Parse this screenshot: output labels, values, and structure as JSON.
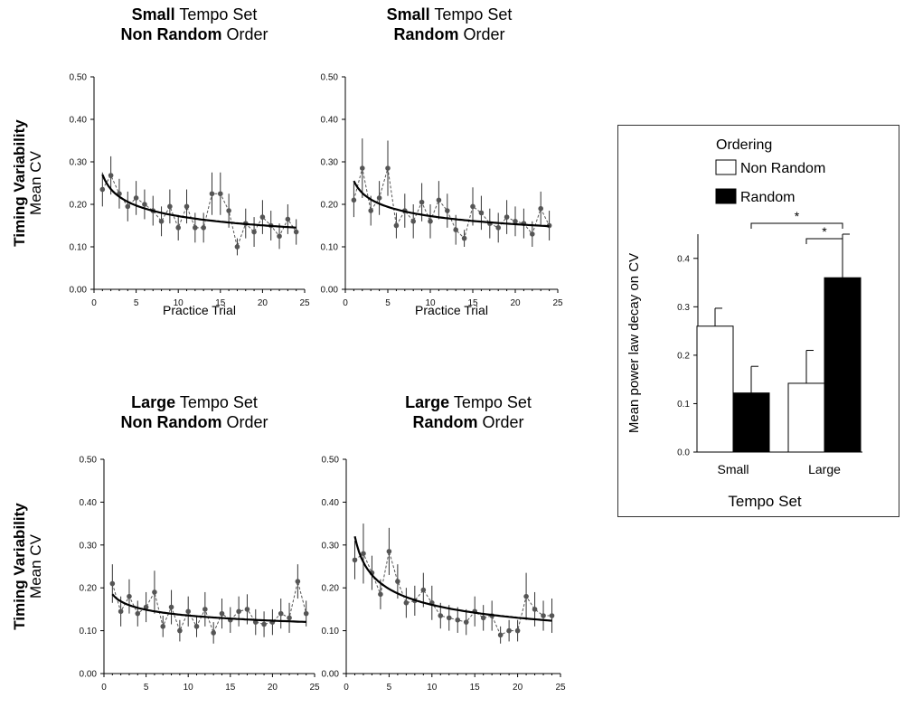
{
  "panels": [
    {
      "title_bold": "Small",
      "title_rest": " Tempo Set",
      "order_bold": "Non Random",
      "order_rest": " Order"
    },
    {
      "title_bold": "Small",
      "title_rest": " Tempo Set",
      "order_bold": "Random",
      "order_rest": " Order"
    },
    {
      "title_bold": "Large",
      "title_rest": " Tempo Set",
      "order_bold": "Non Random",
      "order_rest": " Order"
    },
    {
      "title_bold": "Large",
      "title_rest": " Tempo Set",
      "order_bold": "Random",
      "order_rest": " Order"
    }
  ],
  "y_label_line1": "Timing Variability",
  "y_label_line2": "Mean CV",
  "x_label": "Practice Trial",
  "chart_data": [
    {
      "type": "line",
      "xlabel": "Practice Trial",
      "ylabel": "Timing Variability Mean CV",
      "xlim": [
        0,
        25
      ],
      "ylim": [
        0,
        0.5
      ],
      "xticks": [
        0,
        5,
        10,
        15,
        20,
        25
      ],
      "yticks": [
        "0.00",
        "0.10",
        "0.20",
        "0.30",
        "0.40",
        "0.50"
      ],
      "x": [
        1,
        2,
        3,
        4,
        5,
        6,
        7,
        8,
        9,
        10,
        11,
        12,
        13,
        14,
        15,
        16,
        17,
        18,
        19,
        20,
        21,
        22,
        23,
        24
      ],
      "values": [
        0.235,
        0.268,
        0.225,
        0.195,
        0.215,
        0.2,
        0.185,
        0.16,
        0.195,
        0.145,
        0.195,
        0.145,
        0.145,
        0.225,
        0.225,
        0.185,
        0.1,
        0.155,
        0.135,
        0.17,
        0.15,
        0.125,
        0.165,
        0.135
      ],
      "errors": [
        0.04,
        0.045,
        0.035,
        0.035,
        0.04,
        0.035,
        0.035,
        0.035,
        0.04,
        0.03,
        0.04,
        0.035,
        0.035,
        0.05,
        0.05,
        0.04,
        0.02,
        0.035,
        0.035,
        0.04,
        0.035,
        0.03,
        0.035,
        0.03
      ],
      "fit": {
        "a": 0.27,
        "b": 0.195
      }
    },
    {
      "type": "line",
      "xlabel": "Practice Trial",
      "ylabel": "Timing Variability Mean CV",
      "xlim": [
        0,
        25
      ],
      "ylim": [
        0,
        0.5
      ],
      "xticks": [
        0,
        5,
        10,
        15,
        20,
        25
      ],
      "yticks": [
        "0.00",
        "0.10",
        "0.20",
        "0.30",
        "0.40",
        "0.50"
      ],
      "x": [
        1,
        2,
        3,
        4,
        5,
        6,
        7,
        8,
        9,
        10,
        11,
        12,
        13,
        14,
        15,
        16,
        17,
        18,
        19,
        20,
        21,
        22,
        23,
        24
      ],
      "values": [
        0.21,
        0.285,
        0.185,
        0.215,
        0.285,
        0.15,
        0.185,
        0.16,
        0.205,
        0.16,
        0.21,
        0.185,
        0.14,
        0.12,
        0.195,
        0.18,
        0.155,
        0.145,
        0.17,
        0.16,
        0.155,
        0.13,
        0.19,
        0.15
      ],
      "errors": [
        0.04,
        0.07,
        0.035,
        0.04,
        0.065,
        0.03,
        0.04,
        0.04,
        0.045,
        0.04,
        0.045,
        0.04,
        0.035,
        0.02,
        0.045,
        0.04,
        0.035,
        0.035,
        0.04,
        0.035,
        0.035,
        0.03,
        0.04,
        0.035
      ],
      "fit": {
        "a": 0.255,
        "b": 0.17
      }
    },
    {
      "type": "line",
      "xlabel": "Practice Trial",
      "ylabel": "Timing Variability Mean CV",
      "xlim": [
        0,
        25
      ],
      "ylim": [
        0,
        0.5
      ],
      "xticks": [
        0,
        5,
        10,
        15,
        20,
        25
      ],
      "yticks": [
        "0.00",
        "0.10",
        "0.20",
        "0.30",
        "0.40",
        "0.50"
      ],
      "x": [
        1,
        2,
        3,
        4,
        5,
        6,
        7,
        8,
        9,
        10,
        11,
        12,
        13,
        14,
        15,
        16,
        17,
        18,
        19,
        20,
        21,
        22,
        23,
        24
      ],
      "values": [
        0.21,
        0.145,
        0.18,
        0.14,
        0.155,
        0.19,
        0.11,
        0.155,
        0.1,
        0.145,
        0.11,
        0.15,
        0.095,
        0.14,
        0.125,
        0.145,
        0.15,
        0.12,
        0.115,
        0.12,
        0.14,
        0.13,
        0.215,
        0.14
      ],
      "errors": [
        0.045,
        0.035,
        0.04,
        0.03,
        0.035,
        0.05,
        0.025,
        0.04,
        0.025,
        0.035,
        0.025,
        0.04,
        0.025,
        0.035,
        0.03,
        0.035,
        0.035,
        0.03,
        0.03,
        0.03,
        0.035,
        0.035,
        0.04,
        0.03
      ],
      "fit": {
        "a": 0.185,
        "b": 0.135
      }
    },
    {
      "type": "line",
      "xlabel": "Practice Trial",
      "ylabel": "Timing Variability Mean CV",
      "xlim": [
        0,
        25
      ],
      "ylim": [
        0,
        0.5
      ],
      "xticks": [
        0,
        5,
        10,
        15,
        20,
        25
      ],
      "yticks": [
        "0.00",
        "0.10",
        "0.20",
        "0.30",
        "0.40",
        "0.50"
      ],
      "x": [
        1,
        2,
        3,
        4,
        5,
        6,
        7,
        8,
        9,
        10,
        11,
        12,
        13,
        14,
        15,
        16,
        17,
        18,
        19,
        20,
        21,
        22,
        23,
        24
      ],
      "values": [
        0.265,
        0.28,
        0.235,
        0.185,
        0.285,
        0.215,
        0.165,
        0.17,
        0.195,
        0.165,
        0.135,
        0.13,
        0.125,
        0.12,
        0.145,
        0.13,
        0.135,
        0.09,
        0.1,
        0.1,
        0.18,
        0.15,
        0.135,
        0.135
      ],
      "errors": [
        0.045,
        0.07,
        0.04,
        0.035,
        0.055,
        0.04,
        0.035,
        0.035,
        0.04,
        0.04,
        0.03,
        0.03,
        0.03,
        0.03,
        0.035,
        0.03,
        0.035,
        0.02,
        0.025,
        0.025,
        0.055,
        0.04,
        0.035,
        0.04
      ],
      "fit": {
        "a": 0.32,
        "b": 0.3
      }
    },
    {
      "type": "bar",
      "title": "",
      "xlabel": "Tempo Set",
      "ylabel": "Mean power law decay on CV",
      "ylim": [
        0,
        0.45
      ],
      "yticks": [
        "0.0",
        "0.1",
        "0.2",
        "0.3",
        "0.4"
      ],
      "categories": [
        "Small",
        "Large"
      ],
      "legend_title": "Ordering",
      "series": [
        {
          "name": "Non Random",
          "color": "#ffffff",
          "values": [
            0.26,
            0.142
          ],
          "errors": [
            0.037,
            0.068
          ]
        },
        {
          "name": "Random",
          "color": "#000000",
          "values": [
            0.122,
            0.36
          ],
          "errors": [
            0.055,
            0.09
          ]
        }
      ],
      "significance": [
        "*",
        "*"
      ]
    }
  ]
}
